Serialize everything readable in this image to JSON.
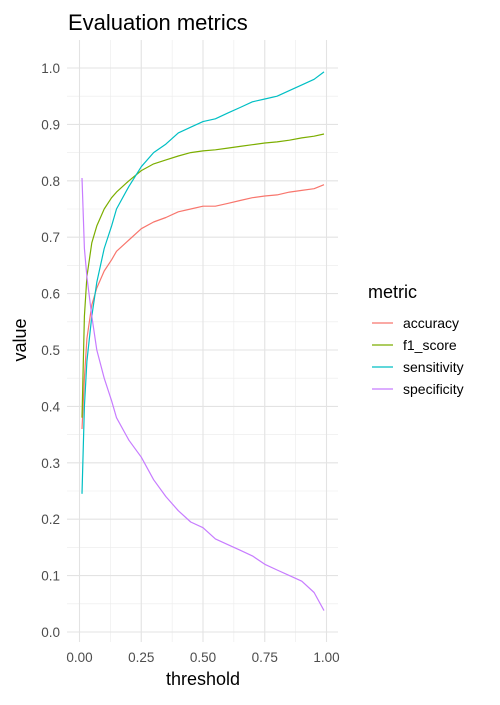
{
  "chart_data": {
    "type": "line",
    "title": "Evaluation metrics",
    "xlabel": "threshold",
    "ylabel": "value",
    "xlim": [
      0,
      1
    ],
    "ylim": [
      0,
      1.02
    ],
    "x_ticks": [
      "0.00",
      "0.25",
      "0.50",
      "0.75",
      "1.00"
    ],
    "y_ticks": [
      "0.0",
      "0.1",
      "0.2",
      "0.3",
      "0.4",
      "0.5",
      "0.6",
      "0.7",
      "0.8",
      "0.9",
      "1.0"
    ],
    "grid": true,
    "legend": {
      "title": "metric",
      "position": "right"
    },
    "x": [
      0.01,
      0.02,
      0.03,
      0.05,
      0.07,
      0.1,
      0.13,
      0.15,
      0.2,
      0.25,
      0.3,
      0.35,
      0.4,
      0.45,
      0.5,
      0.55,
      0.6,
      0.65,
      0.7,
      0.75,
      0.8,
      0.85,
      0.9,
      0.95,
      0.99
    ],
    "series": [
      {
        "name": "accuracy",
        "color": "#F8766D",
        "values": [
          0.36,
          0.45,
          0.52,
          0.58,
          0.61,
          0.64,
          0.66,
          0.675,
          0.695,
          0.715,
          0.727,
          0.735,
          0.745,
          0.75,
          0.755,
          0.755,
          0.76,
          0.765,
          0.77,
          0.773,
          0.775,
          0.78,
          0.783,
          0.786,
          0.793
        ]
      },
      {
        "name": "f1_score",
        "color": "#7CAE00",
        "values": [
          0.38,
          0.56,
          0.63,
          0.69,
          0.72,
          0.75,
          0.77,
          0.78,
          0.8,
          0.818,
          0.83,
          0.837,
          0.844,
          0.85,
          0.853,
          0.855,
          0.858,
          0.861,
          0.864,
          0.867,
          0.869,
          0.872,
          0.876,
          0.879,
          0.883
        ]
      },
      {
        "name": "sensitivity",
        "color": "#00BFC4",
        "values": [
          0.245,
          0.4,
          0.48,
          0.56,
          0.62,
          0.68,
          0.72,
          0.75,
          0.79,
          0.825,
          0.85,
          0.865,
          0.885,
          0.895,
          0.905,
          0.91,
          0.92,
          0.93,
          0.94,
          0.945,
          0.95,
          0.96,
          0.97,
          0.98,
          0.993
        ]
      },
      {
        "name": "specificity",
        "color": "#C77CFF",
        "values": [
          0.805,
          0.68,
          0.63,
          0.56,
          0.5,
          0.45,
          0.41,
          0.38,
          0.34,
          0.31,
          0.27,
          0.24,
          0.215,
          0.195,
          0.185,
          0.165,
          0.155,
          0.145,
          0.135,
          0.12,
          0.11,
          0.1,
          0.09,
          0.07,
          0.038
        ]
      }
    ]
  }
}
